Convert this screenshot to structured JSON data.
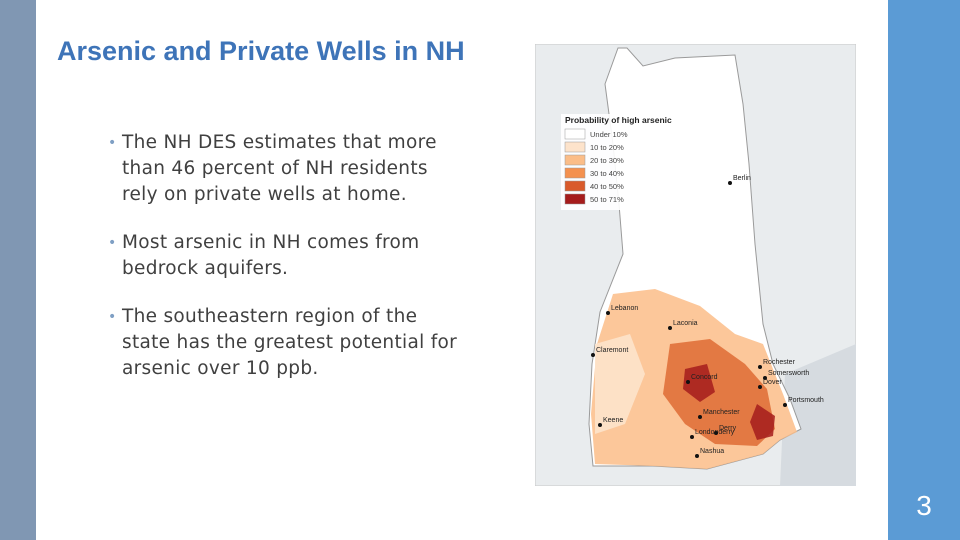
{
  "slide": {
    "title": "Arsenic and Private Wells in NH",
    "bullets": [
      "The NH DES estimates that more than 46 percent of NH residents rely on private wells at home.",
      "Most arsenic in NH comes from bedrock aquifers.",
      "The southeastern region of the state has the greatest potential for arsenic over 10 ppb."
    ],
    "page_number": "3"
  },
  "map": {
    "legend": {
      "title": "Probability of high arsenic",
      "items": [
        {
          "label": "Under 10%",
          "color": "#ffffff"
        },
        {
          "label": "10 to 20%",
          "color": "#fde3cb"
        },
        {
          "label": "20 to 30%",
          "color": "#fbbd88"
        },
        {
          "label": "30 to 40%",
          "color": "#f4914f"
        },
        {
          "label": "40 to 50%",
          "color": "#d95a2b"
        },
        {
          "label": "50 to 71%",
          "color": "#a51c1c"
        }
      ]
    },
    "cities": [
      {
        "name": "Berlin"
      },
      {
        "name": "Lebanon"
      },
      {
        "name": "Laconia"
      },
      {
        "name": "Claremont"
      },
      {
        "name": "Concord"
      },
      {
        "name": "Rochester"
      },
      {
        "name": "Somersworth"
      },
      {
        "name": "Dover"
      },
      {
        "name": "Portsmouth"
      },
      {
        "name": "Manchester"
      },
      {
        "name": "Keene"
      },
      {
        "name": "Londonderry"
      },
      {
        "name": "Derry"
      },
      {
        "name": "Nashua"
      }
    ]
  }
}
